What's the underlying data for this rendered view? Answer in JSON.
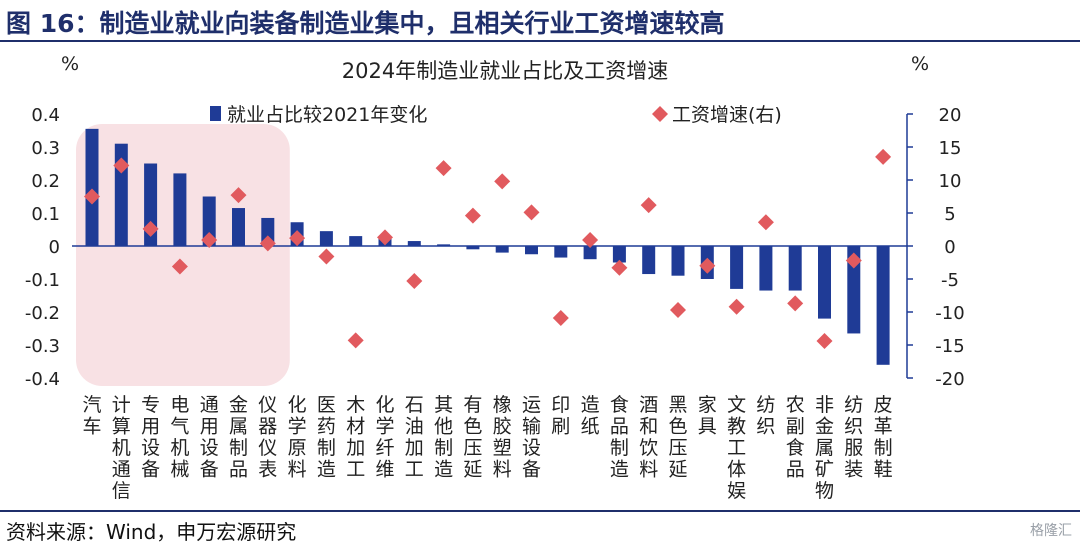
{
  "header": {
    "title": "图 16：制造业就业向装备制造业集中，且相关行业工资增速较高"
  },
  "footer": {
    "source": "资料来源：Wind，申万宏源研究",
    "watermark": "格隆汇"
  },
  "chart_data": {
    "type": "bar",
    "title": "2024年制造业就业占比及工资增速",
    "left_unit": "%",
    "right_unit": "%",
    "colors": {
      "bar": "#1f3b96",
      "marker": "#e15a5e",
      "highlight": "#f8e1e4",
      "axis": "#1f3b96"
    },
    "highlight_range": [
      "汽车",
      "仪器仪表"
    ],
    "left_axis": {
      "min": -0.4,
      "max": 0.4,
      "ticks": [
        "0.4",
        "0.3",
        "0.2",
        "0.1",
        "0",
        "-0.1",
        "-0.2",
        "-0.3",
        "-0.4"
      ]
    },
    "right_axis": {
      "min": -20,
      "max": 20,
      "ticks": [
        "20",
        "15",
        "10",
        "5",
        "0",
        "-5",
        "-10",
        "-15",
        "-20"
      ]
    },
    "categories": [
      "汽车",
      "计算机通信",
      "专用设备",
      "电气机械",
      "通用设备",
      "金属制品",
      "仪器仪表",
      "化学原料",
      "医药制造",
      "木材加工",
      "化学纤维",
      "石油加工",
      "其他制造",
      "有色压延",
      "橡胶塑料",
      "运输设备",
      "印刷",
      "造纸",
      "食品制造",
      "酒和饮料",
      "黑色压延",
      "家具",
      "文教工体娱",
      "纺织",
      "农副食品",
      "非金属矿物",
      "纺织服装",
      "皮革制鞋"
    ],
    "series": [
      {
        "name": "就业占比较2021年变化",
        "type": "bar",
        "axis": "left",
        "values": [
          0.355,
          0.31,
          0.25,
          0.22,
          0.15,
          0.115,
          0.085,
          0.072,
          0.045,
          0.03,
          0.022,
          0.015,
          0.005,
          -0.01,
          -0.02,
          -0.025,
          -0.035,
          -0.04,
          -0.05,
          -0.085,
          -0.09,
          -0.1,
          -0.13,
          -0.135,
          -0.135,
          -0.22,
          -0.265,
          -0.36
        ]
      },
      {
        "name": "工资增速(右)",
        "type": "scatter",
        "axis": "right",
        "values": [
          7.5,
          12.2,
          2.6,
          -3.1,
          0.9,
          7.7,
          0.4,
          1.2,
          -1.6,
          -14.3,
          1.3,
          -5.3,
          11.8,
          4.6,
          9.8,
          5.1,
          -10.9,
          0.9,
          -3.3,
          6.2,
          -9.7,
          -3.0,
          -9.2,
          3.6,
          -8.7,
          -14.4,
          -2.2,
          13.5
        ]
      }
    ]
  }
}
